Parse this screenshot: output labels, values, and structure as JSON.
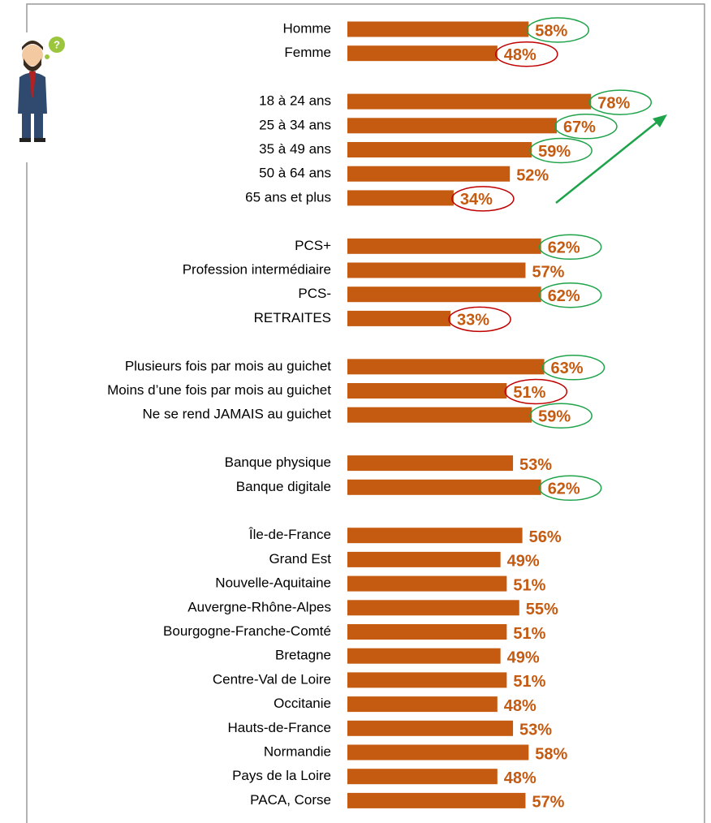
{
  "chart_data": [
    {
      "type": "bar",
      "color": "#c55a11",
      "categories": [
        "Homme",
        "Femme"
      ],
      "values": [
        58,
        48
      ],
      "value_labels": [
        "58%",
        "48%"
      ],
      "circle_colors": [
        "#1fa34a",
        "#c00000"
      ]
    },
    {
      "type": "bar",
      "color": "#c55a11",
      "categories": [
        "18 à 24 ans",
        "25 à 34 ans",
        "35 à 49 ans",
        "50 à 64 ans",
        "65 ans et plus"
      ],
      "values": [
        78,
        67,
        59,
        52,
        34
      ],
      "value_labels": [
        "78%",
        "67%",
        "59%",
        "52%",
        "34%"
      ],
      "circle_colors": [
        "#1fa34a",
        "#1fa34a",
        "#1fa34a",
        null,
        "#c00000"
      ]
    },
    {
      "type": "bar",
      "color": "#c55a11",
      "categories": [
        "PCS+",
        "Profession intermédiaire",
        "PCS-",
        "RETRAITES"
      ],
      "values": [
        62,
        57,
        62,
        33
      ],
      "value_labels": [
        "62%",
        "57%",
        "62%",
        "33%"
      ],
      "circle_colors": [
        "#1fa34a",
        null,
        "#1fa34a",
        "#c00000"
      ]
    },
    {
      "type": "bar",
      "color": "#c55a11",
      "categories": [
        "Plusieurs fois par mois  au guichet",
        "Moins d’une fois par mois au guichet",
        "Ne se rend JAMAIS au guichet"
      ],
      "values": [
        63,
        51,
        59
      ],
      "value_labels": [
        "63%",
        "51%",
        "59%"
      ],
      "circle_colors": [
        "#1fa34a",
        "#c00000",
        "#1fa34a"
      ]
    },
    {
      "type": "bar",
      "color": "#c55a11",
      "categories": [
        "Banque physique",
        "Banque digitale"
      ],
      "values": [
        53,
        62
      ],
      "value_labels": [
        "53%",
        "62%"
      ],
      "circle_colors": [
        null,
        "#1fa34a"
      ]
    },
    {
      "type": "bar",
      "color": "#c55a11",
      "categories": [
        "Île-de-France",
        "Grand Est",
        "Nouvelle-Aquitaine",
        "Auvergne-Rhône-Alpes",
        "Bourgogne-Franche-Comté",
        "Bretagne",
        "Centre-Val de Loire",
        "Occitanie",
        "Hauts-de-France",
        "Normandie",
        "Pays de la Loire",
        "PACA, Corse"
      ],
      "values": [
        56,
        49,
        51,
        55,
        51,
        49,
        51,
        48,
        53,
        58,
        48,
        57
      ],
      "value_labels": [
        "56%",
        "49%",
        "51%",
        "55%",
        "51%",
        "49%",
        "51%",
        "48%",
        "53%",
        "58%",
        "48%",
        "57%"
      ]
    }
  ]
}
